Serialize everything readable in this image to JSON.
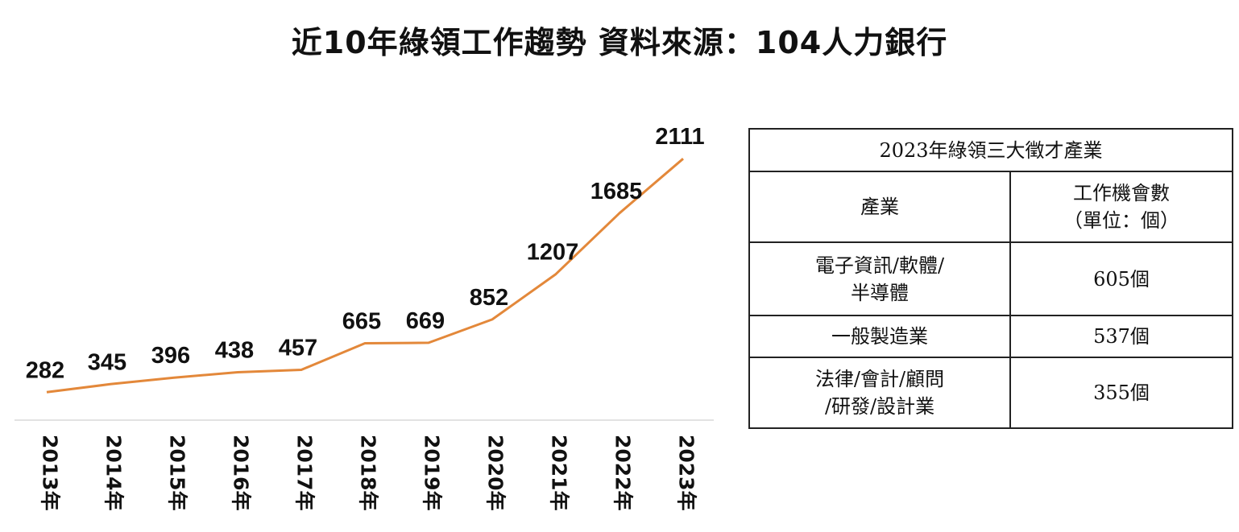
{
  "title": "近10年綠領工作趨勢 資料來源：104人力銀行",
  "chart_data": {
    "type": "line",
    "categories": [
      "2013年",
      "2014年",
      "2015年",
      "2016年",
      "2017年",
      "2018年",
      "2019年",
      "2020年",
      "2021年",
      "2022年",
      "2023年"
    ],
    "values": [
      282,
      345,
      396,
      438,
      457,
      665,
      669,
      852,
      1207,
      1685,
      2111
    ],
    "value_labels": [
      "282",
      "345",
      "396",
      "438",
      "457",
      "665",
      "669",
      "852",
      "1207",
      "1685",
      "2111"
    ],
    "ylim": [
      0,
      2400
    ],
    "line_color": "#E3883A",
    "axis_color": "#D9D9D9",
    "grid": false,
    "legend": "none"
  },
  "table": {
    "title": "2023年綠領三大徵才產業",
    "header": {
      "industry": "產業",
      "jobs_line1": "工作機會數",
      "jobs_line2": "（單位：個）"
    },
    "rows": [
      {
        "industry_line1": "電子資訊/軟體/",
        "industry_line2": "半導體",
        "jobs": "605個"
      },
      {
        "industry_line1": "一般製造業",
        "industry_line2": "",
        "jobs": "537個"
      },
      {
        "industry_line1": "法律/會計/顧問",
        "industry_line2": "/研發/設計業",
        "jobs": "355個"
      }
    ]
  }
}
